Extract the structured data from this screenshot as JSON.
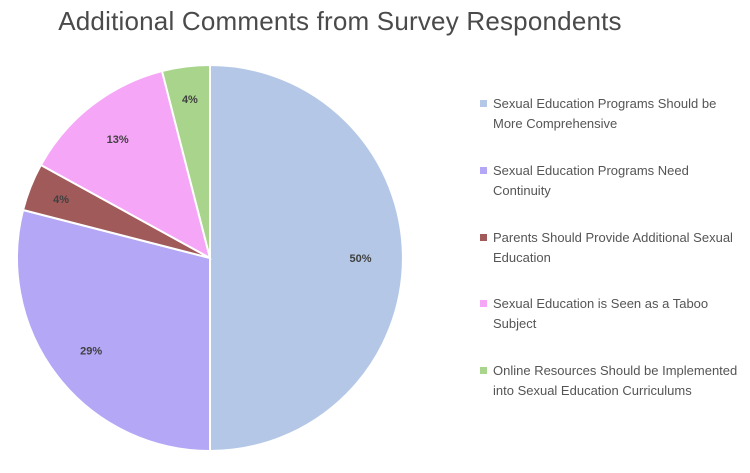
{
  "chart_data": {
    "type": "pie",
    "title": "Additional Comments from Survey Respondents",
    "slices": [
      {
        "label": "Sexual Education Programs Should be More Comprehensive",
        "value": 50,
        "display": "50%",
        "color": "#b4c7e7"
      },
      {
        "label": "Sexual Education Programs Need Continuity",
        "value": 29,
        "display": "29%",
        "color": "#b4a7f5"
      },
      {
        "label": "Parents Should Provide Additional Sexual Education",
        "value": 4,
        "display": "4%",
        "color": "#a05a5a"
      },
      {
        "label": "Sexual Education is Seen as a Taboo Subject",
        "value": 13,
        "display": "13%",
        "color": "#f6a6f7"
      },
      {
        "label": "Online Resources Should be Implemented into Sexual Education Curriculums",
        "value": 4,
        "display": "4%",
        "color": "#a8d48b"
      }
    ],
    "start": "12 o'clock",
    "direction": "clockwise",
    "legend_position": "right"
  }
}
